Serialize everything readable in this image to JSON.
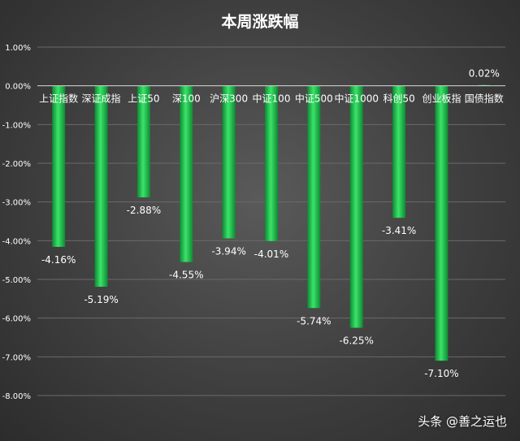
{
  "chart_data": {
    "type": "bar",
    "title": "本周涨跌幅",
    "xlabel": "",
    "ylabel": "",
    "ylim": [
      -8,
      1
    ],
    "ytick_values": [
      1,
      0,
      -1,
      -2,
      -3,
      -4,
      -5,
      -6,
      -7,
      -8
    ],
    "ytick_labels": [
      "1.00%",
      "0.00%",
      "-1.00%",
      "-2.00%",
      "-3.00%",
      "-4.00%",
      "-5.00%",
      "-6.00%",
      "-7.00%",
      "-8.00%"
    ],
    "categories": [
      "上证指数",
      "深证成指",
      "上证50",
      "深100",
      "沪深300",
      "中证100",
      "中证500",
      "中证1000",
      "科创50",
      "创业板指",
      "国债指数"
    ],
    "values": [
      -4.16,
      -5.19,
      -2.88,
      -4.55,
      -3.94,
      -4.01,
      -5.74,
      -6.25,
      -3.41,
      -7.1,
      0.02
    ],
    "data_labels": [
      "-4.16%",
      "-5.19%",
      "-2.88%",
      "-4.55%",
      "-3.94%",
      "-4.01%",
      "-5.74%",
      "-6.25%",
      "-3.41%",
      "-7.10%",
      "0.02%"
    ],
    "grid": true,
    "bar_color": "#1db954"
  },
  "watermark": "头条 @善之运也"
}
